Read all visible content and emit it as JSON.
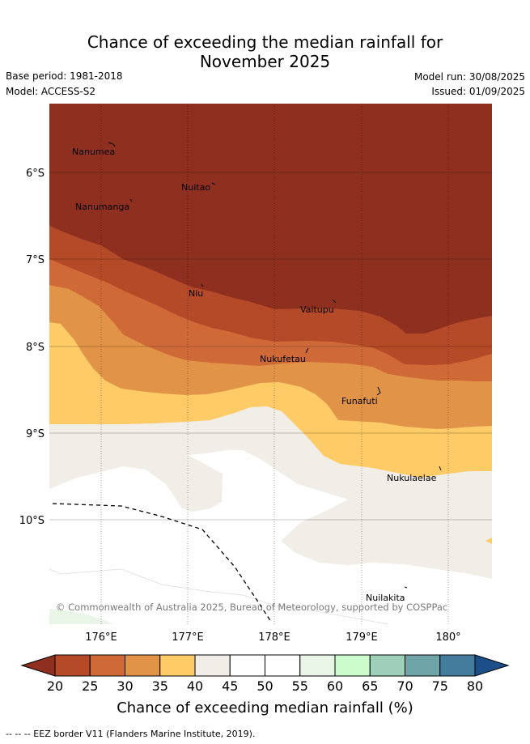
{
  "title_line1": "Chance of exceeding the median rainfall for",
  "title_line2": "November 2025",
  "base_period": "Base period: 1981-2018",
  "model": "Model: ACCESS-S2",
  "model_run": "Model run: 30/08/2025",
  "issued": "Issued: 01/09/2025",
  "lat_labels": [
    "6°S",
    "7°S",
    "8°S",
    "9°S",
    "10°S"
  ],
  "lon_labels": [
    "176°E",
    "177°E",
    "178°E",
    "179°E",
    "180°"
  ],
  "places": [
    "Nanumea",
    "Nuitao",
    "Nanumanga",
    "Niu",
    "Vaitupu",
    "Nukufetau",
    "Funafuti",
    "Nukulaelae",
    "Nuilakita"
  ],
  "copyright": "© Commonwealth of Australia 2025, Bureau of Meteorology, supported by COSPPac",
  "colorbar": {
    "ticks": [
      "20",
      "25",
      "30",
      "35",
      "40",
      "45",
      "50",
      "55",
      "60",
      "65",
      "70",
      "75",
      "80"
    ],
    "title": "Chance of exceeding median rainfall (%)",
    "colors": {
      "below20": "#8e2f1f",
      "20-25": "#b44a27",
      "25-30": "#cf6a38",
      "30-35": "#e19448",
      "35-40": "#fecb66",
      "40-45": "#f1ede7",
      "45-50": "#ffffff",
      "50-55": "#ffffff",
      "55-60": "#e9f5e6",
      "60-65": "#ccfccc",
      "65-70": "#9ecfb8",
      "70-75": "#6fa5a9",
      "75-80": "#447c9e",
      "above80": "#1c4e8a"
    }
  },
  "eez_note": "--  --  -- EEZ border V11 (Flanders Marine Institute, 2019)."
}
